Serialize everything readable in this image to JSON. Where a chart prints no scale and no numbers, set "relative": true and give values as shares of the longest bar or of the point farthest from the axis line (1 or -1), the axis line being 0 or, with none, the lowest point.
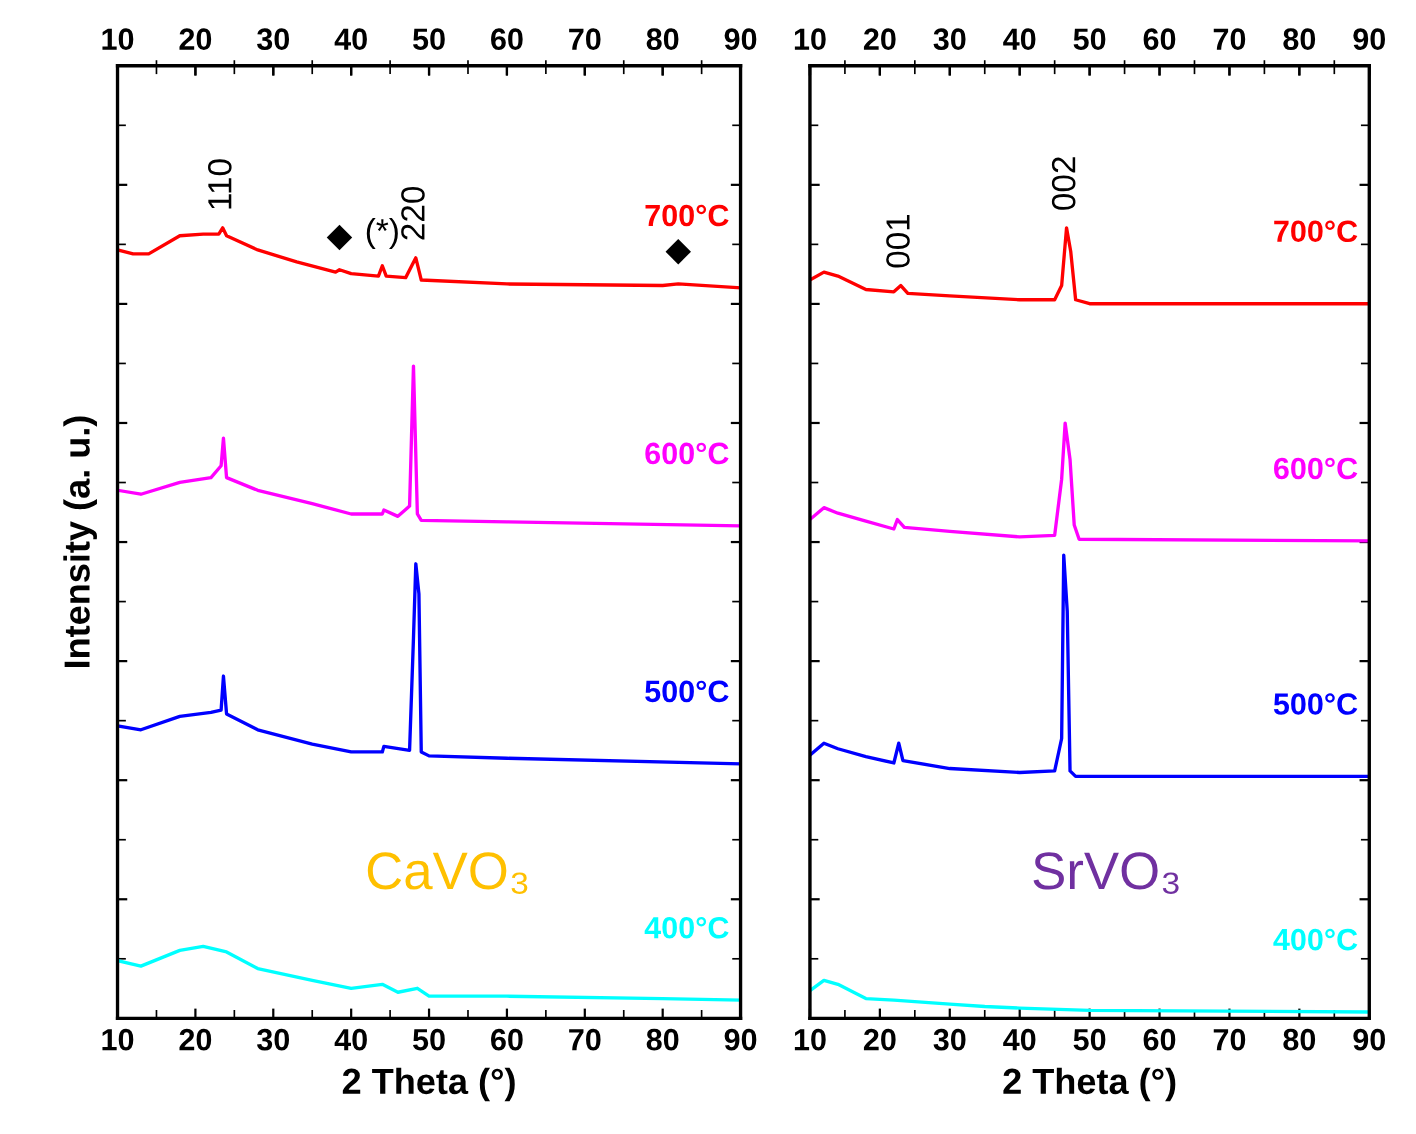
{
  "chart_data": [
    {
      "type": "line",
      "title": "CaVO₃",
      "xlabel": "2 Theta (°)",
      "ylabel": "Intensity (a. u.)",
      "relative": true,
      "tick_labels": "x",
      "xlim": [
        10,
        90
      ],
      "xticks": [
        10,
        20,
        30,
        40,
        50,
        60,
        70,
        80,
        90
      ],
      "x2lim": [
        10,
        90
      ],
      "x2ticks": [
        10,
        20,
        30,
        40,
        50,
        60,
        70,
        80,
        90
      ],
      "series": [
        {
          "name": "700°C",
          "color": "#ff0000",
          "x": [
            10,
            12,
            14,
            18,
            21,
            23,
            23.5,
            24,
            28,
            33,
            38,
            38.5,
            40,
            43.5,
            44,
            44.5,
            47,
            48.3,
            49,
            60,
            80,
            82,
            90
          ],
          "values": [
            0.972,
            0.967,
            0.967,
            0.99,
            0.992,
            0.992,
            1,
            0.99,
            0.972,
            0.957,
            0.944,
            0.947,
            0.942,
            0.939,
            0.952,
            0.939,
            0.937,
            0.962,
            0.934,
            0.929,
            0.927,
            0.929,
            0.924
          ]
        },
        {
          "name": "600°C",
          "color": "#ff00ff",
          "x": [
            10,
            13,
            18,
            22,
            23.3,
            23.6,
            24,
            28,
            35,
            40,
            44,
            44.2,
            46,
            47.5,
            48,
            48.5,
            49,
            60,
            90
          ],
          "values": [
            0.668,
            0.663,
            0.678,
            0.684,
            0.699,
            0.734,
            0.684,
            0.668,
            0.651,
            0.638,
            0.638,
            0.643,
            0.635,
            0.648,
            0.825,
            0.638,
            0.63,
            0.628,
            0.623
          ]
        },
        {
          "name": "500°C",
          "color": "#0000ff",
          "x": [
            10,
            13,
            18,
            22,
            23.3,
            23.6,
            24,
            28,
            35,
            40,
            44,
            44.2,
            47.5,
            48,
            48.3,
            48.7,
            49,
            50,
            60,
            90
          ],
          "values": [
            0.37,
            0.365,
            0.382,
            0.387,
            0.39,
            0.433,
            0.385,
            0.365,
            0.347,
            0.337,
            0.337,
            0.344,
            0.339,
            0.481,
            0.575,
            0.537,
            0.337,
            0.332,
            0.329,
            0.322
          ]
        },
        {
          "name": "400°C",
          "color": "#00ffff",
          "x": [
            10,
            13,
            18,
            21,
            24,
            28,
            35,
            40,
            44,
            46,
            48.5,
            50,
            60,
            80,
            90
          ],
          "values": [
            0.073,
            0.066,
            0.086,
            0.091,
            0.084,
            0.063,
            0.048,
            0.038,
            0.043,
            0.033,
            0.038,
            0.028,
            0.028,
            0.025,
            0.023
          ]
        }
      ],
      "annotations": [
        {
          "text": "110",
          "x": 23.5,
          "y": 1
        },
        {
          "text": "220",
          "x": 48.3,
          "y": 0.962
        },
        {
          "text": "(*)",
          "x": 44,
          "y": 0.952
        },
        {
          "text": "◆",
          "x": 38.5,
          "y": 0.947
        },
        {
          "text": "◆",
          "x": 82,
          "y": 0.929
        }
      ]
    },
    {
      "type": "line",
      "title": "SrVO₃",
      "xlabel": "2 Theta (°)",
      "relative": true,
      "tick_labels": "x",
      "xlim": [
        10,
        90
      ],
      "xticks": [
        10,
        20,
        30,
        40,
        50,
        60,
        70,
        80,
        90
      ],
      "x2lim": [
        10,
        90
      ],
      "x2ticks": [
        10,
        20,
        30,
        40,
        50,
        60,
        70,
        80,
        90
      ],
      "series": [
        {
          "name": "700°C",
          "color": "#ff0000",
          "x": [
            10,
            12,
            14,
            18,
            22,
            23,
            24,
            30,
            40,
            45,
            46,
            46.7,
            47.3,
            48,
            50,
            90
          ],
          "values": [
            0.934,
            0.944,
            0.939,
            0.922,
            0.919,
            0.927,
            0.917,
            0.914,
            0.909,
            0.909,
            0.927,
            1,
            0.97,
            0.909,
            0.904,
            0.904
          ]
        },
        {
          "name": "600°C",
          "color": "#ff00ff",
          "x": [
            10,
            12,
            14,
            18,
            22,
            22.5,
            23.5,
            30,
            40,
            45,
            46,
            46.5,
            47.2,
            47.8,
            48.5,
            90
          ],
          "values": [
            0.631,
            0.646,
            0.639,
            0.629,
            0.619,
            0.631,
            0.621,
            0.616,
            0.609,
            0.611,
            0.682,
            0.753,
            0.707,
            0.624,
            0.606,
            0.604
          ]
        },
        {
          "name": "500°C",
          "color": "#0000ff",
          "x": [
            10,
            12,
            14,
            18,
            22,
            22.7,
            23.3,
            30,
            40,
            45,
            46,
            46.3,
            46.8,
            47.2,
            48,
            90
          ],
          "values": [
            0.333,
            0.348,
            0.341,
            0.331,
            0.323,
            0.348,
            0.326,
            0.316,
            0.311,
            0.313,
            0.354,
            0.586,
            0.515,
            0.313,
            0.306,
            0.306
          ]
        },
        {
          "name": "400°C",
          "color": "#00ffff",
          "x": [
            10,
            12,
            14,
            18,
            22,
            30,
            35,
            40,
            50,
            90
          ],
          "values": [
            0.035,
            0.048,
            0.043,
            0.025,
            0.023,
            0.018,
            0.015,
            0.013,
            0.01,
            0.008
          ]
        }
      ],
      "annotations": [
        {
          "text": "001",
          "x": 23,
          "y": 0.927
        },
        {
          "text": "002",
          "x": 46.7,
          "y": 1
        }
      ]
    }
  ]
}
